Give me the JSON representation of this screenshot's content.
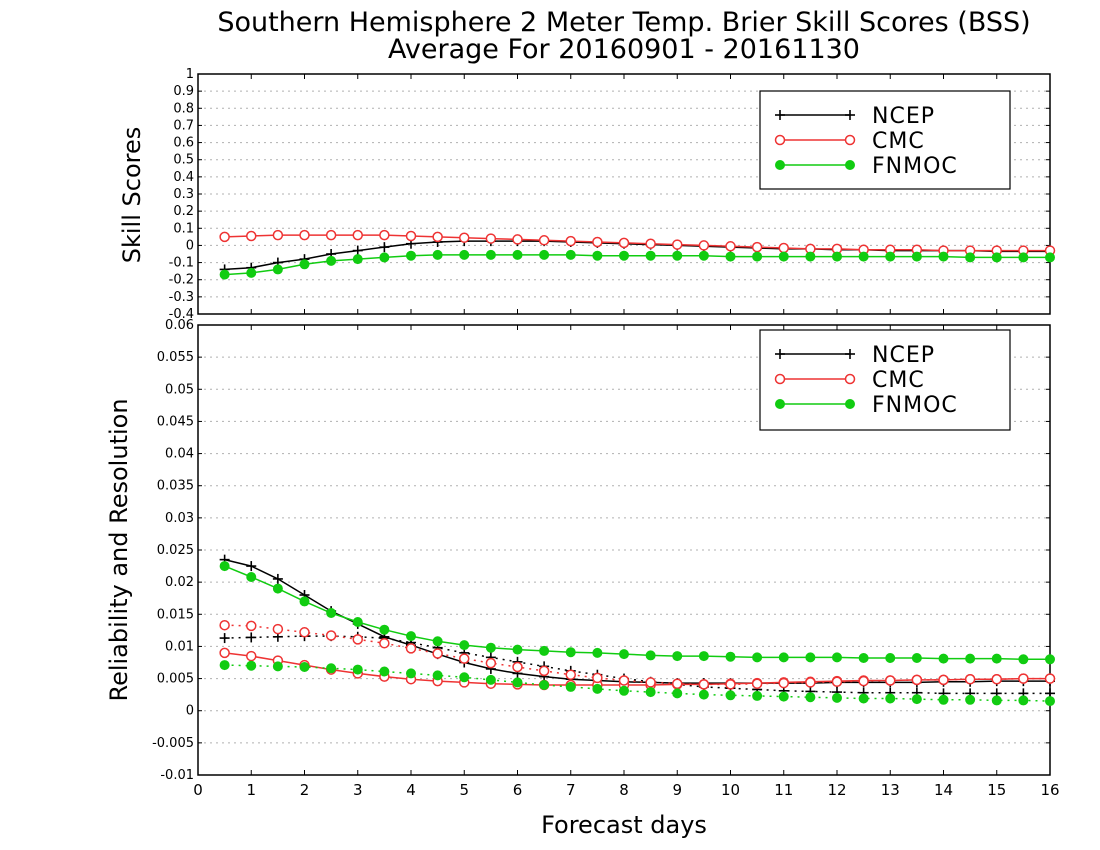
{
  "title_line1": "Southern Hemisphere 2 Meter Temp. Brier Skill Scores (BSS)",
  "title_line2": "Average For 20160901 - 20161130",
  "xlabel": "Forecast days",
  "colors": {
    "NCEP": "#000000",
    "CMC": "#ee3333",
    "FNMOC": "#11cc11",
    "grid": "#b0b0b0"
  },
  "chart_data": [
    {
      "type": "line",
      "ylabel": "Skill Scores",
      "xlim": [
        0,
        16
      ],
      "ylim": [
        -0.4,
        1
      ],
      "xticks": [
        "0",
        "1",
        "2",
        "3",
        "4",
        "5",
        "6",
        "7",
        "8",
        "9",
        "10",
        "11",
        "12",
        "13",
        "14",
        "15",
        "16"
      ],
      "yticks": [
        "-0.4",
        "-0.3",
        "-0.2",
        "-0.1",
        "0",
        "0.1",
        "0.2",
        "0.3",
        "0.4",
        "0.5",
        "0.6",
        "0.7",
        "0.8",
        "0.9",
        "1"
      ],
      "grid": true,
      "legend_position": "top-right",
      "legend": [
        "NCEP",
        "CMC",
        "FNMOC"
      ],
      "x": [
        0.5,
        1,
        1.5,
        2,
        2.5,
        3,
        3.5,
        4,
        4.5,
        5,
        5.5,
        6,
        6.5,
        7,
        7.5,
        8,
        8.5,
        9,
        9.5,
        10,
        10.5,
        11,
        11.5,
        12,
        12.5,
        13,
        13.5,
        14,
        14.5,
        15,
        15.5,
        16
      ],
      "series": [
        {
          "name": "NCEP",
          "style": "solid",
          "marker": "plus",
          "values": [
            -0.14,
            -0.13,
            -0.1,
            -0.08,
            -0.05,
            -0.03,
            -0.01,
            0.01,
            0.02,
            0.025,
            0.025,
            0.025,
            0.025,
            0.02,
            0.015,
            0.01,
            0.005,
            0.0,
            -0.005,
            -0.01,
            -0.015,
            -0.02,
            -0.02,
            -0.025,
            -0.025,
            -0.03,
            -0.03,
            -0.03,
            -0.03,
            -0.035,
            -0.035,
            -0.035
          ]
        },
        {
          "name": "CMC",
          "style": "solid",
          "marker": "open-circle",
          "values": [
            0.05,
            0.055,
            0.06,
            0.06,
            0.06,
            0.06,
            0.06,
            0.055,
            0.05,
            0.045,
            0.04,
            0.035,
            0.03,
            0.025,
            0.02,
            0.015,
            0.01,
            0.005,
            0.0,
            -0.005,
            -0.01,
            -0.015,
            -0.02,
            -0.02,
            -0.025,
            -0.025,
            -0.025,
            -0.03,
            -0.03,
            -0.03,
            -0.03,
            -0.03
          ]
        },
        {
          "name": "FNMOC",
          "style": "solid",
          "marker": "filled-circle",
          "values": [
            -0.17,
            -0.16,
            -0.14,
            -0.11,
            -0.09,
            -0.08,
            -0.07,
            -0.06,
            -0.055,
            -0.055,
            -0.055,
            -0.055,
            -0.055,
            -0.055,
            -0.06,
            -0.06,
            -0.06,
            -0.06,
            -0.06,
            -0.065,
            -0.065,
            -0.065,
            -0.065,
            -0.065,
            -0.065,
            -0.065,
            -0.065,
            -0.065,
            -0.07,
            -0.07,
            -0.07,
            -0.07
          ]
        }
      ]
    },
    {
      "type": "line",
      "ylabel": "Reliability and Resolution",
      "xlim": [
        0,
        16
      ],
      "ylim": [
        -0.01,
        0.06
      ],
      "xticks": [
        "0",
        "1",
        "2",
        "3",
        "4",
        "5",
        "6",
        "7",
        "8",
        "9",
        "10",
        "11",
        "12",
        "13",
        "14",
        "15",
        "16"
      ],
      "yticks": [
        "-0.01",
        "-0.005",
        "0",
        "0.005",
        "0.01",
        "0.015",
        "0.02",
        "0.025",
        "0.03",
        "0.035",
        "0.04",
        "0.045",
        "0.05",
        "0.055",
        "0.06"
      ],
      "grid": true,
      "legend_position": "top-right",
      "legend": [
        "NCEP",
        "CMC",
        "FNMOC"
      ],
      "x": [
        0.5,
        1,
        1.5,
        2,
        2.5,
        3,
        3.5,
        4,
        4.5,
        5,
        5.5,
        6,
        6.5,
        7,
        7.5,
        8,
        8.5,
        9,
        9.5,
        10,
        10.5,
        11,
        11.5,
        12,
        12.5,
        13,
        13.5,
        14,
        14.5,
        15,
        15.5,
        16
      ],
      "series": [
        {
          "name": "NCEP",
          "style": "solid",
          "marker": "plus",
          "values": [
            0.0235,
            0.0225,
            0.0205,
            0.018,
            0.0155,
            0.0135,
            0.0115,
            0.0102,
            0.0088,
            0.0075,
            0.0065,
            0.0058,
            0.0053,
            0.0049,
            0.0047,
            0.0045,
            0.0044,
            0.0043,
            0.0043,
            0.0043,
            0.0043,
            0.0043,
            0.0043,
            0.0044,
            0.0044,
            0.0044,
            0.0044,
            0.0045,
            0.0045,
            0.0046,
            0.0046,
            0.0046
          ]
        },
        {
          "name": "NCEP",
          "style": "dotted",
          "marker": "plus",
          "values": [
            0.0113,
            0.0114,
            0.0115,
            0.0116,
            0.0116,
            0.0115,
            0.0113,
            0.0106,
            0.0098,
            0.009,
            0.0083,
            0.0076,
            0.0069,
            0.0062,
            0.0056,
            0.005,
            0.0045,
            0.0041,
            0.0037,
            0.0035,
            0.0033,
            0.0031,
            0.003,
            0.0029,
            0.0028,
            0.0028,
            0.0028,
            0.0027,
            0.0027,
            0.0027,
            0.0027,
            0.0027
          ]
        },
        {
          "name": "CMC",
          "style": "solid",
          "marker": "open-circle",
          "values": [
            0.009,
            0.0085,
            0.0078,
            0.0071,
            0.0064,
            0.0058,
            0.0053,
            0.0049,
            0.0046,
            0.0044,
            0.0042,
            0.0041,
            0.004,
            0.004,
            0.004,
            0.004,
            0.004,
            0.0041,
            0.0041,
            0.0042,
            0.0043,
            0.0044,
            0.0045,
            0.0046,
            0.0047,
            0.0047,
            0.0048,
            0.0048,
            0.0049,
            0.0049,
            0.005,
            0.005
          ]
        },
        {
          "name": "CMC",
          "style": "dotted",
          "marker": "open-circle",
          "values": [
            0.0133,
            0.0132,
            0.0127,
            0.0122,
            0.0117,
            0.0111,
            0.0105,
            0.0097,
            0.0089,
            0.0081,
            0.0074,
            0.0068,
            0.0062,
            0.0056,
            0.0051,
            0.0047,
            0.0044,
            0.0042,
            0.0041,
            0.0041,
            0.0042,
            0.0043,
            0.0044,
            0.0045,
            0.0046,
            0.0047,
            0.0048,
            0.0048,
            0.0049,
            0.0049,
            0.005,
            0.005
          ]
        },
        {
          "name": "FNMOC",
          "style": "solid",
          "marker": "filled-circle",
          "values": [
            0.0225,
            0.0208,
            0.019,
            0.017,
            0.0152,
            0.0138,
            0.0126,
            0.0116,
            0.0108,
            0.0102,
            0.0098,
            0.0095,
            0.0093,
            0.0091,
            0.009,
            0.0088,
            0.0086,
            0.0085,
            0.0085,
            0.0084,
            0.0083,
            0.0083,
            0.0083,
            0.0083,
            0.0082,
            0.0082,
            0.0082,
            0.0081,
            0.0081,
            0.0081,
            0.008,
            0.008
          ]
        },
        {
          "name": "FNMOC",
          "style": "dotted",
          "marker": "filled-circle",
          "values": [
            0.0071,
            0.007,
            0.0069,
            0.0068,
            0.0066,
            0.0064,
            0.0061,
            0.0058,
            0.0055,
            0.0052,
            0.0048,
            0.0044,
            0.004,
            0.0037,
            0.0034,
            0.0031,
            0.0029,
            0.0027,
            0.0025,
            0.0024,
            0.0023,
            0.0022,
            0.0021,
            0.002,
            0.0019,
            0.0019,
            0.0018,
            0.0017,
            0.0017,
            0.0016,
            0.0016,
            0.0015
          ]
        }
      ]
    }
  ]
}
